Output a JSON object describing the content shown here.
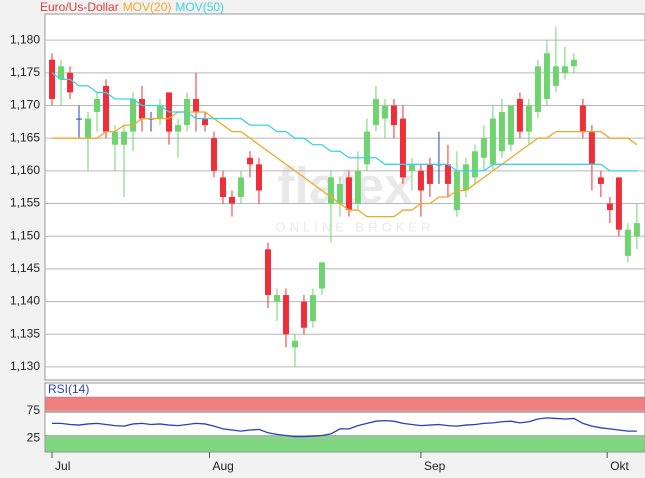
{
  "chart_data": [
    {
      "type": "candlestick",
      "x": [
        0,
        1,
        2,
        3,
        4,
        5,
        6,
        7,
        8,
        9,
        10,
        11,
        12,
        13,
        14,
        15,
        16,
        17,
        18,
        19,
        20,
        21,
        22,
        23,
        24,
        25,
        26,
        27,
        28,
        29,
        30,
        31,
        32,
        33,
        34,
        35,
        36,
        37,
        38,
        39,
        40,
        41,
        42,
        43,
        44,
        45,
        46,
        47,
        48,
        49,
        50,
        51,
        52,
        53,
        54,
        55,
        56,
        57,
        58,
        59,
        60,
        61,
        62,
        63,
        64,
        65
      ],
      "candles": {
        "name": "Euro/Us-Dollar",
        "color": "#e03a3a",
        "up_color": "#6fd46f",
        "down_color": "#ee2f3a",
        "flat_color": "#2a3fc0",
        "open": [
          1.177,
          1.174,
          1.175,
          1.168,
          1.165,
          1.169,
          1.173,
          1.164,
          1.164,
          1.166,
          1.171,
          1.168,
          1.168,
          1.172,
          1.166,
          1.167,
          1.171,
          1.168,
          1.165,
          1.159,
          1.156,
          1.156,
          1.162,
          1.161,
          1.148,
          1.14,
          1.141,
          1.133,
          1.14,
          1.137,
          1.142,
          1.155,
          1.155,
          1.159,
          1.155,
          1.161,
          1.167,
          1.168,
          1.17,
          1.168,
          1.16,
          1.16,
          1.161,
          1.161,
          1.161,
          1.154,
          1.157,
          1.159,
          1.162,
          1.161,
          1.163,
          1.164,
          1.171,
          1.166,
          1.169,
          1.171,
          1.173,
          1.175,
          1.176,
          1.17,
          1.166,
          1.159,
          1.155,
          1.159,
          1.147,
          1.15
        ],
        "high": [
          1.178,
          1.177,
          1.176,
          1.17,
          1.169,
          1.172,
          1.174,
          1.167,
          1.167,
          1.172,
          1.173,
          1.169,
          1.171,
          1.172,
          1.168,
          1.172,
          1.175,
          1.169,
          1.166,
          1.16,
          1.157,
          1.16,
          1.163,
          1.162,
          1.149,
          1.142,
          1.142,
          1.135,
          1.141,
          1.142,
          1.146,
          1.16,
          1.159,
          1.16,
          1.163,
          1.168,
          1.173,
          1.171,
          1.171,
          1.17,
          1.162,
          1.161,
          1.162,
          1.166,
          1.164,
          1.163,
          1.162,
          1.164,
          1.167,
          1.17,
          1.171,
          1.17,
          1.172,
          1.171,
          1.177,
          1.18,
          1.182,
          1.179,
          1.178,
          1.171,
          1.167,
          1.16,
          1.156,
          1.159,
          1.152,
          1.155
        ],
        "low": [
          1.17,
          1.17,
          1.171,
          1.165,
          1.16,
          1.166,
          1.165,
          1.16,
          1.156,
          1.163,
          1.166,
          1.166,
          1.167,
          1.164,
          1.162,
          1.166,
          1.166,
          1.166,
          1.159,
          1.155,
          1.153,
          1.155,
          1.159,
          1.155,
          1.139,
          1.137,
          1.133,
          1.13,
          1.135,
          1.136,
          1.141,
          1.149,
          1.153,
          1.153,
          1.154,
          1.16,
          1.166,
          1.165,
          1.165,
          1.158,
          1.157,
          1.153,
          1.156,
          1.158,
          1.156,
          1.153,
          1.156,
          1.158,
          1.16,
          1.16,
          1.162,
          1.163,
          1.165,
          1.164,
          1.168,
          1.17,
          1.172,
          1.174,
          1.175,
          1.165,
          1.157,
          1.156,
          1.152,
          1.15,
          1.146,
          1.148
        ],
        "close": [
          1.171,
          1.176,
          1.172,
          1.168,
          1.168,
          1.171,
          1.166,
          1.166,
          1.166,
          1.171,
          1.168,
          1.168,
          1.17,
          1.166,
          1.167,
          1.171,
          1.169,
          1.167,
          1.16,
          1.156,
          1.155,
          1.159,
          1.161,
          1.157,
          1.141,
          1.141,
          1.135,
          1.134,
          1.136,
          1.141,
          1.146,
          1.159,
          1.158,
          1.154,
          1.16,
          1.166,
          1.171,
          1.17,
          1.167,
          1.159,
          1.161,
          1.157,
          1.158,
          1.161,
          1.158,
          1.16,
          1.161,
          1.163,
          1.165,
          1.168,
          1.169,
          1.17,
          1.166,
          1.17,
          1.176,
          1.178,
          1.176,
          1.176,
          1.177,
          1.166,
          1.161,
          1.158,
          1.154,
          1.151,
          1.151,
          1.152
        ]
      },
      "series": [
        {
          "name": "MOV(20)",
          "color": "#f0a828",
          "values": [
            1.165,
            1.165,
            1.165,
            1.165,
            1.165,
            1.165,
            1.166,
            1.166,
            1.167,
            1.167,
            1.168,
            1.168,
            1.168,
            1.168,
            1.169,
            1.169,
            1.169,
            1.169,
            1.168,
            1.167,
            1.166,
            1.166,
            1.165,
            1.164,
            1.163,
            1.162,
            1.161,
            1.16,
            1.159,
            1.158,
            1.157,
            1.156,
            1.155,
            1.154,
            1.154,
            1.153,
            1.153,
            1.153,
            1.153,
            1.154,
            1.154,
            1.155,
            1.155,
            1.156,
            1.156,
            1.157,
            1.157,
            1.158,
            1.159,
            1.16,
            1.161,
            1.162,
            1.163,
            1.164,
            1.165,
            1.165,
            1.166,
            1.166,
            1.166,
            1.166,
            1.166,
            1.166,
            1.165,
            1.165,
            1.165,
            1.164
          ]
        },
        {
          "name": "MOV(50)",
          "color": "#3cd0e8",
          "values": [
            1.175,
            1.174,
            1.174,
            1.173,
            1.173,
            1.172,
            1.172,
            1.171,
            1.171,
            1.171,
            1.17,
            1.17,
            1.17,
            1.169,
            1.169,
            1.169,
            1.168,
            1.168,
            1.168,
            1.168,
            1.168,
            1.168,
            1.167,
            1.167,
            1.167,
            1.166,
            1.166,
            1.165,
            1.165,
            1.164,
            1.164,
            1.163,
            1.163,
            1.162,
            1.162,
            1.162,
            1.162,
            1.161,
            1.161,
            1.161,
            1.161,
            1.161,
            1.161,
            1.161,
            1.161,
            1.16,
            1.16,
            1.16,
            1.16,
            1.161,
            1.161,
            1.161,
            1.161,
            1.161,
            1.161,
            1.161,
            1.161,
            1.161,
            1.161,
            1.161,
            1.161,
            1.161,
            1.16,
            1.16,
            1.16,
            1.16
          ]
        }
      ],
      "xlim": [
        -0.78,
        65.9
      ],
      "ylim": [
        1.128,
        1.184
      ],
      "yticks": [
        {
          "value": 1.13,
          "label": "1,130"
        },
        {
          "value": 1.135,
          "label": "1,135"
        },
        {
          "value": 1.14,
          "label": "1,140"
        },
        {
          "value": 1.145,
          "label": "1,145"
        },
        {
          "value": 1.15,
          "label": "1,150"
        },
        {
          "value": 1.155,
          "label": "1,155"
        },
        {
          "value": 1.16,
          "label": "1,160"
        },
        {
          "value": 1.165,
          "label": "1,165"
        },
        {
          "value": 1.17,
          "label": "1,170"
        },
        {
          "value": 1.175,
          "label": "1,175"
        },
        {
          "value": 1.18,
          "label": "1,180"
        }
      ],
      "grid": true,
      "watermark": {
        "title": "flatex",
        "subtitle": "ONLINE BROKER"
      }
    },
    {
      "type": "line",
      "title": "RSI(14)",
      "title_color": "#2a3fc0",
      "x": [
        0,
        1,
        2,
        3,
        4,
        5,
        6,
        7,
        8,
        9,
        10,
        11,
        12,
        13,
        14,
        15,
        16,
        17,
        18,
        19,
        20,
        21,
        22,
        23,
        24,
        25,
        26,
        27,
        28,
        29,
        30,
        31,
        32,
        33,
        34,
        35,
        36,
        37,
        38,
        39,
        40,
        41,
        42,
        43,
        44,
        45,
        46,
        47,
        48,
        49,
        50,
        51,
        52,
        53,
        54,
        55,
        56,
        57,
        58,
        59,
        60,
        61,
        62,
        63,
        64,
        65
      ],
      "color": "#2a3fc0",
      "values": [
        52,
        52,
        50,
        49,
        51,
        52,
        50,
        48,
        47,
        51,
        52,
        50,
        51,
        49,
        48,
        50,
        52,
        51,
        47,
        42,
        40,
        38,
        40,
        41,
        35,
        32,
        30,
        28,
        28,
        29,
        30,
        33,
        42,
        42,
        48,
        52,
        56,
        57,
        56,
        52,
        50,
        48,
        49,
        50,
        48,
        47,
        49,
        50,
        52,
        53,
        55,
        56,
        53,
        55,
        60,
        62,
        61,
        60,
        61,
        52,
        47,
        44,
        42,
        40,
        38,
        38
      ],
      "bands": [
        {
          "from": 72,
          "to": 100,
          "color": "#f08080"
        },
        {
          "from": 0,
          "to": 30,
          "color": "#7ed67e"
        }
      ],
      "xlim": [
        -0.78,
        65.9
      ],
      "ylim": [
        0,
        100
      ],
      "yticks": [
        25,
        75
      ],
      "xticks": [
        {
          "value": 0,
          "label": "Jul"
        },
        {
          "value": 17.5,
          "label": "Aug"
        },
        {
          "value": 41,
          "label": "Sep"
        },
        {
          "value": 61.7,
          "label": "Okt"
        }
      ],
      "grid": true
    }
  ]
}
